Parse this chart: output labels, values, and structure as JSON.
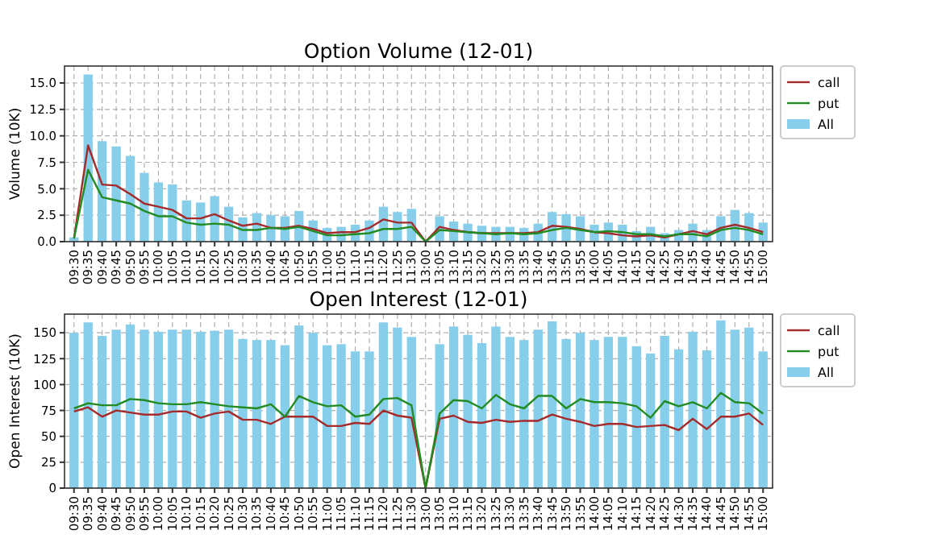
{
  "chart_data": [
    {
      "type": "bar",
      "title": "Option Volume (12-01)",
      "ylabel": "Volume (10K)",
      "categories": [
        "09:30",
        "09:35",
        "09:40",
        "09:45",
        "09:50",
        "09:55",
        "10:00",
        "10:05",
        "10:10",
        "10:15",
        "10:20",
        "10:25",
        "10:30",
        "10:35",
        "10:40",
        "10:45",
        "10:50",
        "10:55",
        "11:00",
        "11:05",
        "11:10",
        "11:15",
        "11:20",
        "11:25",
        "11:30",
        "13:00",
        "13:05",
        "13:10",
        "13:15",
        "13:20",
        "13:25",
        "13:30",
        "13:35",
        "13:40",
        "13:45",
        "13:50",
        "13:55",
        "14:00",
        "14:05",
        "14:10",
        "14:15",
        "14:20",
        "14:25",
        "14:30",
        "14:35",
        "14:40",
        "14:45",
        "14:50",
        "14:55",
        "15:00"
      ],
      "series": [
        {
          "name": "call",
          "type": "line",
          "color": "#a52a2a",
          "values": [
            0.3,
            9.1,
            5.4,
            5.3,
            4.5,
            3.6,
            3.3,
            3.0,
            2.2,
            2.2,
            2.6,
            2.0,
            1.5,
            1.7,
            1.3,
            1.3,
            1.5,
            1.2,
            0.8,
            0.9,
            0.9,
            1.3,
            2.1,
            1.8,
            1.8,
            0,
            1.4,
            1.1,
            0.9,
            0.8,
            0.8,
            0.8,
            0.8,
            0.9,
            1.5,
            1.4,
            1.2,
            0.9,
            0.8,
            0.6,
            0.5,
            0.6,
            0.4,
            0.7,
            1.0,
            0.7,
            1.3,
            1.6,
            1.3,
            0.9
          ]
        },
        {
          "name": "put",
          "type": "line",
          "color": "#228b22",
          "values": [
            0.3,
            6.8,
            4.2,
            3.9,
            3.6,
            2.9,
            2.4,
            2.4,
            1.8,
            1.6,
            1.7,
            1.6,
            1.1,
            1.1,
            1.3,
            1.2,
            1.4,
            1.0,
            0.6,
            0.6,
            0.7,
            0.8,
            1.2,
            1.2,
            1.4,
            0,
            1.1,
            1.0,
            0.9,
            0.8,
            0.7,
            0.8,
            0.7,
            0.8,
            1.1,
            1.3,
            1.1,
            0.9,
            1.0,
            0.9,
            0.7,
            0.7,
            0.5,
            0.7,
            0.7,
            0.5,
            1.1,
            1.3,
            1.1,
            0.7
          ]
        },
        {
          "name": "All",
          "color": "#87ceeb",
          "values": [
            0.4,
            15.8,
            9.5,
            9.0,
            8.1,
            6.5,
            5.6,
            5.4,
            3.9,
            3.7,
            4.3,
            3.3,
            2.3,
            2.7,
            2.5,
            2.4,
            2.9,
            2.0,
            1.3,
            1.4,
            1.6,
            2.0,
            3.3,
            2.8,
            3.1,
            0,
            2.4,
            1.9,
            1.7,
            1.5,
            1.4,
            1.4,
            1.3,
            1.7,
            2.8,
            2.6,
            2.4,
            1.6,
            1.8,
            1.6,
            1.0,
            1.4,
            0.8,
            1.1,
            1.7,
            1.1,
            2.4,
            3.0,
            2.7,
            1.8
          ]
        }
      ],
      "ylim": [
        0,
        16.6
      ],
      "yticks": [
        {
          "value": 0,
          "label": "0.0"
        },
        {
          "value": 2.5,
          "label": "2.5"
        },
        {
          "value": 5,
          "label": "5.0"
        },
        {
          "value": 7.5,
          "label": "7.5"
        },
        {
          "value": 10,
          "label": "10.0"
        },
        {
          "value": 12.5,
          "label": "12.5"
        },
        {
          "value": 15,
          "label": "15.0"
        }
      ],
      "grid": true,
      "legend": "top right"
    },
    {
      "type": "bar",
      "title": "Open Interest (12-01)",
      "ylabel": "Open Interest (10K)",
      "categories": [
        "09:30",
        "09:35",
        "09:40",
        "09:45",
        "09:50",
        "09:55",
        "10:00",
        "10:05",
        "10:10",
        "10:15",
        "10:20",
        "10:25",
        "10:30",
        "10:35",
        "10:40",
        "10:45",
        "10:50",
        "10:55",
        "11:00",
        "11:05",
        "11:10",
        "11:15",
        "11:20",
        "11:25",
        "11:30",
        "13:00",
        "13:05",
        "13:10",
        "13:15",
        "13:20",
        "13:25",
        "13:30",
        "13:35",
        "13:40",
        "13:45",
        "13:50",
        "13:55",
        "14:00",
        "14:05",
        "14:10",
        "14:15",
        "14:20",
        "14:25",
        "14:30",
        "14:35",
        "14:40",
        "14:45",
        "14:50",
        "14:55",
        "15:00"
      ],
      "series": [
        {
          "name": "call",
          "type": "line",
          "color": "#a52a2a",
          "values": [
            74,
            78,
            69,
            75,
            73,
            71,
            71,
            74,
            74,
            68,
            72,
            74,
            66,
            66,
            62,
            69,
            69,
            69,
            60,
            60,
            63,
            62,
            75,
            70,
            68,
            0,
            67,
            70,
            64,
            63,
            66,
            64,
            65,
            65,
            71,
            67,
            64,
            60,
            62,
            62,
            59,
            60,
            61,
            56,
            67,
            57,
            69,
            69,
            72,
            61
          ]
        },
        {
          "name": "put",
          "type": "line",
          "color": "#228b22",
          "values": [
            77,
            82,
            80,
            80,
            86,
            85,
            82,
            81,
            81,
            83,
            81,
            79,
            78,
            77,
            81,
            69,
            89,
            83,
            79,
            80,
            69,
            71,
            86,
            87,
            80,
            0,
            72,
            85,
            84,
            77,
            90,
            81,
            77,
            89,
            89,
            77,
            86,
            83,
            83,
            82,
            79,
            68,
            84,
            79,
            83,
            77,
            92,
            83,
            82,
            72
          ]
        },
        {
          "name": "All",
          "color": "#87ceeb",
          "values": [
            150,
            160,
            147,
            153,
            158,
            153,
            151,
            153,
            153,
            151,
            152,
            153,
            144,
            143,
            143,
            138,
            157,
            150,
            138,
            139,
            132,
            132,
            160,
            155,
            146,
            0,
            139,
            156,
            148,
            140,
            156,
            146,
            143,
            153,
            161,
            144,
            150,
            143,
            146,
            146,
            137,
            130,
            147,
            134,
            151,
            133,
            162,
            153,
            155,
            132
          ]
        }
      ],
      "ylim": [
        0,
        168
      ],
      "yticks": [
        0,
        25,
        50,
        75,
        100,
        125,
        150
      ],
      "grid": true,
      "legend": "top right"
    }
  ]
}
